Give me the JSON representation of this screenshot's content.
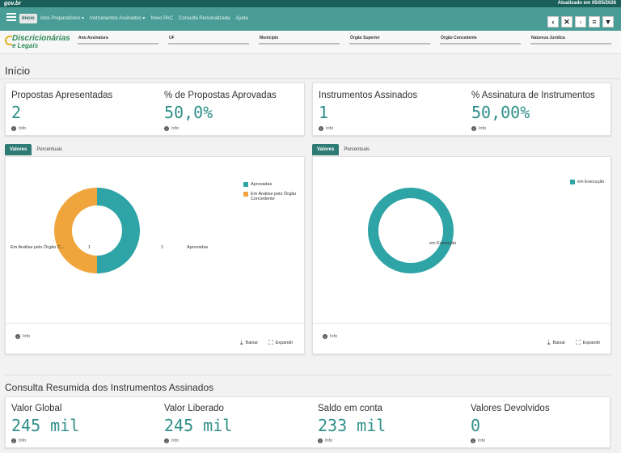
{
  "govbar": {
    "logo": "gov.br",
    "updated": "Atualizado em 05/05/2026"
  },
  "nav": {
    "items": [
      "Início",
      "Atos Preparatórios ▾",
      "Instrumentos Assinados ▾",
      "Novo PAC",
      "Consulta Personalizada",
      "Ajuda"
    ],
    "buttons": [
      "‹",
      "✕",
      "›",
      "≡",
      "▼"
    ]
  },
  "brand": {
    "line1": "Discricionárias",
    "line2": "e Legais"
  },
  "filters": [
    "Ano Assinatura",
    "UF",
    "Município",
    "Órgão Superior",
    "Órgão Concedente",
    "Natureza Jurídica"
  ],
  "page": {
    "title": "Início",
    "section_title": "Consulta Resumida dos Instrumentos Assinados"
  },
  "kpis_left": [
    {
      "label": "Propostas Apresentadas",
      "value": "2",
      "info": "Info"
    },
    {
      "label": "% de Propostas Aprovadas",
      "value": "50,0%",
      "info": "Info"
    }
  ],
  "kpis_right": [
    {
      "label": "Instrumentos Assinados",
      "value": "1",
      "info": "Info"
    },
    {
      "label": "% Assinatura de Instrumentos",
      "value": "50,00%",
      "info": "Info"
    }
  ],
  "tabs": {
    "values": "Valores",
    "percent": "Percentuais"
  },
  "chart_actions": {
    "info": "Info",
    "download": "Baixar",
    "expand": "Expandir"
  },
  "chart_data": [
    {
      "type": "pie",
      "categories": [
        "Aprovadas",
        "Em Análise pelo Órgão Concedente"
      ],
      "values": [
        1,
        1
      ],
      "colors": [
        "#2fa4a6",
        "#f0a53c"
      ],
      "legend": [
        "Aprovadas",
        "Em Análise pelo Órgão Concedente"
      ],
      "legend_position": "top-right",
      "labels": {
        "left_category": "Em Análise pelo Órgão C...",
        "left_value": "1",
        "right_value": "1",
        "right_category": "Aprovadas"
      }
    },
    {
      "type": "pie",
      "categories": [
        "em Execução"
      ],
      "values": [
        1
      ],
      "colors": [
        "#2fa4a6"
      ],
      "legend": [
        "em Execução"
      ],
      "legend_position": "top-right",
      "labels": {
        "category": "em Execução"
      }
    }
  ],
  "summary": [
    {
      "label": "Valor Global",
      "value": "245 mil",
      "info": "Info"
    },
    {
      "label": "Valor Liberado",
      "value": "245 mil",
      "info": "Info"
    },
    {
      "label": "Saldo em conta",
      "value": "233 mil",
      "info": "Info"
    },
    {
      "label": "Valores Devolvidos",
      "value": "0",
      "info": "Info"
    }
  ],
  "colors": {
    "header": "#1a5f5a",
    "nav": "#4a9d97",
    "accent": "#2f8f89",
    "teal": "#2fa4a6",
    "orange": "#f0a53c"
  },
  "icons": {
    "menu": "hamburger-icon",
    "info": "info-icon",
    "download": "download-icon",
    "expand": "expand-icon"
  }
}
